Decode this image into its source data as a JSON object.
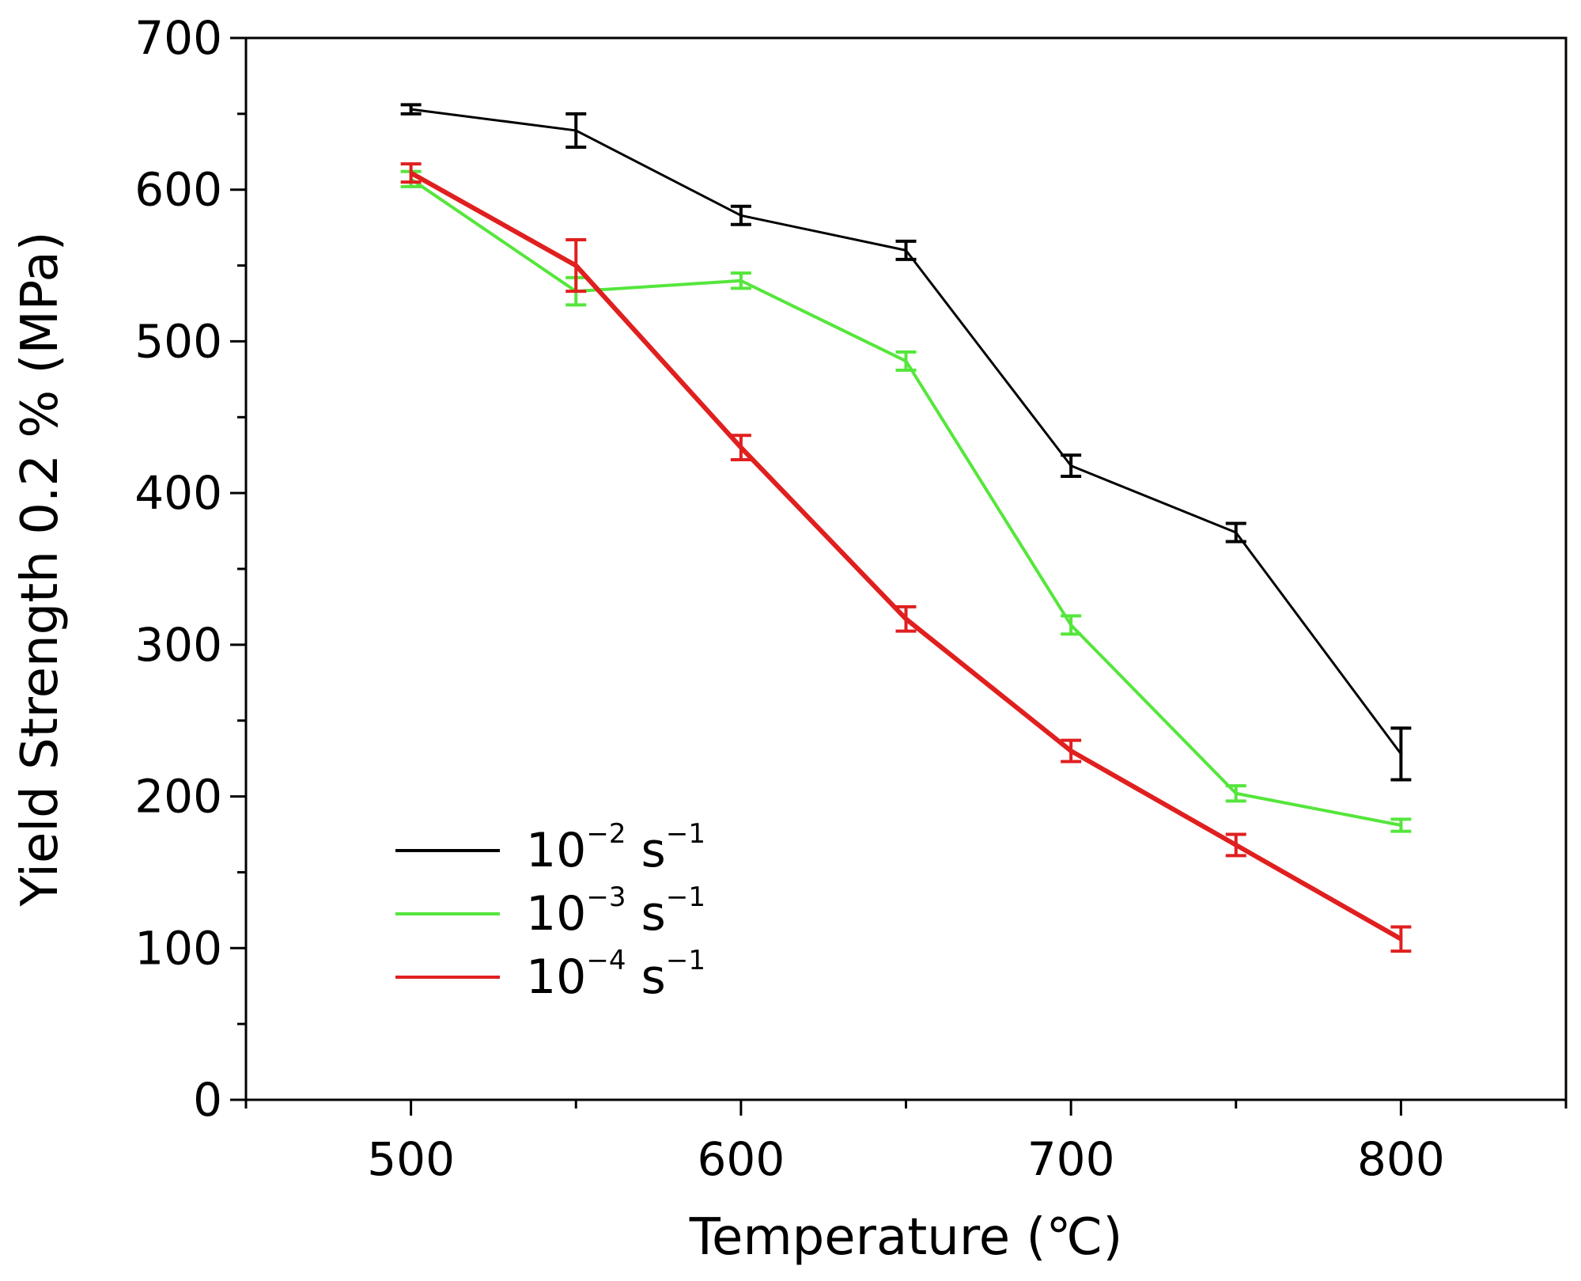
{
  "chart_data": {
    "type": "line",
    "title": "",
    "xlabel": "Temperature (℃)",
    "ylabel": "Yield Strength 0.2 % (MPa)",
    "xlim": [
      450,
      850
    ],
    "ylim": [
      0,
      700
    ],
    "xticks": [
      500,
      600,
      700,
      800
    ],
    "yticks": [
      0,
      100,
      200,
      300,
      400,
      500,
      600,
      700
    ],
    "grid": false,
    "legend_position": "bottom-left",
    "x": [
      500,
      550,
      600,
      650,
      700,
      750,
      800
    ],
    "series": [
      {
        "name": "10^-2 s^-1",
        "legend_base": "10",
        "legend_exp": "−2",
        "legend_unit": "s",
        "legend_unit_exp": "−1",
        "color": "#000000",
        "values": [
          653,
          639,
          583,
          560,
          418,
          374,
          228
        ],
        "errors": [
          3,
          11,
          6,
          6,
          7,
          6,
          17
        ]
      },
      {
        "name": "10^-3 s^-1",
        "legend_base": "10",
        "legend_exp": "−3",
        "legend_unit": "s",
        "legend_unit_exp": "−1",
        "color": "#55e63c",
        "values": [
          607,
          533,
          540,
          487,
          313,
          202,
          181
        ],
        "errors": [
          5,
          9,
          5,
          6,
          6,
          5,
          4
        ]
      },
      {
        "name": "10^-4 s^-1",
        "legend_base": "10",
        "legend_exp": "−4",
        "legend_unit": "s",
        "legend_unit_exp": "−1",
        "color": "#e01f1f",
        "values": [
          611,
          550,
          430,
          317,
          230,
          168,
          106
        ],
        "errors": [
          6,
          17,
          8,
          8,
          7,
          7,
          8
        ]
      }
    ]
  }
}
